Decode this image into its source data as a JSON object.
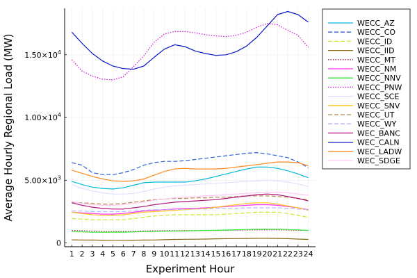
{
  "chart_data": {
    "type": "line",
    "xlabel": "Experiment Hour",
    "ylabel": "Average Hourly Regional Load (MW)",
    "x": [
      1,
      2,
      3,
      4,
      5,
      6,
      7,
      8,
      9,
      10,
      11,
      12,
      13,
      14,
      15,
      16,
      17,
      18,
      19,
      20,
      21,
      22,
      23,
      24
    ],
    "xticks": [
      "1",
      "2",
      "3",
      "4",
      "5",
      "6",
      "7",
      "8",
      "9",
      "10",
      "11",
      "12",
      "13",
      "14",
      "15",
      "16",
      "17",
      "18",
      "19",
      "20",
      "21",
      "22",
      "23",
      "24"
    ],
    "ylim": [
      -300,
      18700
    ],
    "yticks": [
      {
        "value": 0,
        "base": "0",
        "exp": ""
      },
      {
        "value": 5000,
        "base": "5.00×10",
        "exp": "3"
      },
      {
        "value": 10000,
        "base": "1.00×10",
        "exp": "4"
      },
      {
        "value": 15000,
        "base": "1.50×10",
        "exp": "4"
      }
    ],
    "grid": true,
    "legend_position": "top-right, outside plot",
    "series": [
      {
        "name": "WECC_AZ",
        "color": "#00B8D9",
        "dash": "solid",
        "values": [
          4900,
          4650,
          4450,
          4350,
          4300,
          4400,
          4600,
          4800,
          4850,
          4850,
          4850,
          4850,
          4950,
          5100,
          5300,
          5500,
          5700,
          5900,
          6050,
          6050,
          5950,
          5750,
          5500,
          5200
        ]
      },
      {
        "name": "WECC_CO",
        "color": "#2F5FDC",
        "dash": "dashed",
        "values": [
          6400,
          6200,
          5600,
          5450,
          5450,
          5600,
          5850,
          6200,
          6400,
          6500,
          6500,
          6550,
          6650,
          6750,
          6850,
          6950,
          7050,
          7150,
          7200,
          7100,
          6950,
          6800,
          6450,
          6000
        ]
      },
      {
        "name": "WECC_ID",
        "color": "#D4E62E",
        "dash": "dashed",
        "values": [
          1950,
          1900,
          1850,
          1850,
          1850,
          1850,
          1950,
          2050,
          2150,
          2200,
          2250,
          2250,
          2250,
          2250,
          2250,
          2300,
          2350,
          2400,
          2450,
          2450,
          2450,
          2350,
          2200,
          2050
        ]
      },
      {
        "name": "WECC_IID",
        "color": "#8B6A14",
        "dash": "solid",
        "values": [
          250,
          240,
          230,
          220,
          210,
          210,
          220,
          230,
          240,
          260,
          280,
          290,
          300,
          310,
          330,
          340,
          350,
          360,
          370,
          370,
          360,
          340,
          310,
          280
        ]
      },
      {
        "name": "WECC_MT",
        "color": "#A0244E",
        "dash": "dotted",
        "values": [
          1000,
          980,
          950,
          930,
          920,
          920,
          940,
          960,
          970,
          980,
          980,
          990,
          990,
          1000,
          1000,
          1010,
          1020,
          1030,
          1040,
          1040,
          1040,
          1030,
          1010,
          990
        ]
      },
      {
        "name": "WECC_NM",
        "color": "#FF2DF0",
        "dash": "solid",
        "values": [
          2450,
          2400,
          2350,
          2300,
          2300,
          2350,
          2450,
          2550,
          2600,
          2650,
          2700,
          2750,
          2750,
          2800,
          2850,
          2900,
          2950,
          3000,
          3050,
          3050,
          3000,
          2900,
          2800,
          2650
        ]
      },
      {
        "name": "WECC_NNV",
        "color": "#33E83A",
        "dash": "solid",
        "values": [
          900,
          880,
          860,
          850,
          850,
          860,
          880,
          900,
          920,
          940,
          950,
          960,
          980,
          990,
          1010,
          1030,
          1050,
          1070,
          1090,
          1100,
          1090,
          1070,
          1040,
          1000
        ]
      },
      {
        "name": "WECC_PNW",
        "color": "#D10FD6",
        "dash": "dotted",
        "values": [
          14600,
          13700,
          13300,
          13050,
          13000,
          13250,
          14050,
          14900,
          16000,
          16650,
          16850,
          16850,
          16750,
          16600,
          16500,
          16450,
          16550,
          16800,
          17200,
          17500,
          17400,
          16950,
          16550,
          15600
        ]
      },
      {
        "name": "WECC_SCE",
        "color": "#DCE2FF",
        "dash": "solid",
        "values": [
          4650,
          4350,
          4150,
          4000,
          3900,
          3900,
          3950,
          4100,
          4300,
          4450,
          4550,
          4600,
          4650,
          4700,
          4750,
          4800,
          4850,
          4900,
          4950,
          5000,
          4950,
          4850,
          4700,
          4500
        ]
      },
      {
        "name": "WECC_SNV",
        "color": "#FFC61A",
        "dash": "solid",
        "values": [
          2450,
          2350,
          2250,
          2200,
          2200,
          2250,
          2350,
          2450,
          2500,
          2550,
          2600,
          2650,
          2700,
          2750,
          2850,
          2950,
          3050,
          3150,
          3200,
          3200,
          3100,
          2950,
          2800,
          2600
        ]
      },
      {
        "name": "WECC_UT",
        "color": "#B58B4E",
        "dash": "dashed",
        "values": [
          3250,
          3200,
          3150,
          3100,
          3100,
          3150,
          3250,
          3350,
          3450,
          3500,
          3550,
          3550,
          3600,
          3600,
          3650,
          3650,
          3700,
          3750,
          3750,
          3750,
          3700,
          3650,
          3550,
          3450
        ]
      },
      {
        "name": "WECC_WY",
        "color": "#B9B8FF",
        "dash": "dashed",
        "values": [
          2550,
          2550,
          2500,
          2500,
          2500,
          2500,
          2550,
          2600,
          2650,
          2650,
          2650,
          2700,
          2700,
          2700,
          2750,
          2750,
          2750,
          2800,
          2800,
          2800,
          2800,
          2750,
          2700,
          2650
        ]
      },
      {
        "name": "WEC_BANC",
        "color": "#B0127A",
        "dash": "solid",
        "values": [
          3200,
          3000,
          2850,
          2750,
          2700,
          2700,
          2800,
          2900,
          3050,
          3150,
          3250,
          3300,
          3350,
          3400,
          3450,
          3550,
          3650,
          3750,
          3850,
          3900,
          3850,
          3700,
          3550,
          3350
        ]
      },
      {
        "name": "WEC_CALN",
        "color": "#0A14C8",
        "dash": "solid",
        "values": [
          16800,
          15900,
          15100,
          14500,
          14100,
          13900,
          13850,
          14100,
          14800,
          15450,
          15800,
          15650,
          15300,
          15100,
          14950,
          15000,
          15250,
          15700,
          16400,
          17300,
          18200,
          18450,
          18200,
          17600
        ]
      },
      {
        "name": "WEC_LADW",
        "color": "#FF8A1E",
        "dash": "solid",
        "values": [
          5800,
          5550,
          5300,
          5100,
          4950,
          4900,
          4950,
          5100,
          5400,
          5700,
          5900,
          5950,
          5900,
          5900,
          5900,
          5950,
          6050,
          6150,
          6250,
          6350,
          6450,
          6450,
          6400,
          6150
        ]
      },
      {
        "name": "WEC_SDGE",
        "color": "#FFC8F4",
        "dash": "solid",
        "values": [
          3300,
          3150,
          3050,
          3000,
          3000,
          3050,
          3150,
          3250,
          3400,
          3500,
          3600,
          3650,
          3700,
          3750,
          3800,
          3850,
          3900,
          3950,
          4000,
          4050,
          4050,
          4000,
          3900,
          3800
        ]
      }
    ]
  }
}
